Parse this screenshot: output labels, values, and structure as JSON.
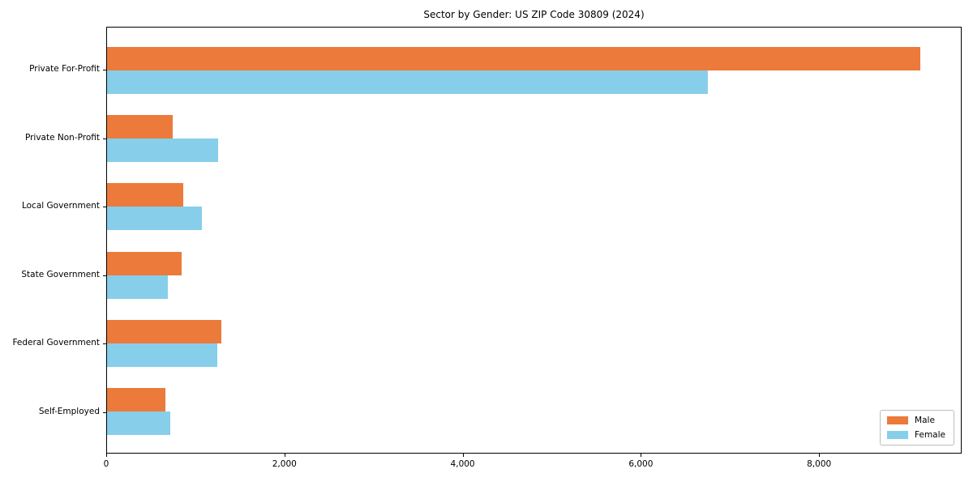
{
  "chart_data": {
    "type": "bar",
    "orientation": "horizontal",
    "title": "Sector by Gender: US ZIP Code 30809 (2024)",
    "categories": [
      "Private For-Profit",
      "Private Non-Profit",
      "Local Government",
      "State Government",
      "Federal Government",
      "Self-Employed"
    ],
    "series": [
      {
        "name": "Male",
        "color": "#ec7a3a",
        "values": [
          9140,
          740,
          855,
          835,
          1290,
          655
        ]
      },
      {
        "name": "Female",
        "color": "#87ceeb",
        "values": [
          6760,
          1250,
          1065,
          685,
          1240,
          710
        ]
      }
    ],
    "xlim": [
      0,
      9600
    ],
    "x_ticks": [
      0,
      2000,
      4000,
      6000,
      8000
    ],
    "x_tick_labels": [
      "0",
      "2,000",
      "4,000",
      "6,000",
      "8,000"
    ],
    "xlabel": "",
    "ylabel": "",
    "grid": false,
    "legend_position": "lower right"
  }
}
